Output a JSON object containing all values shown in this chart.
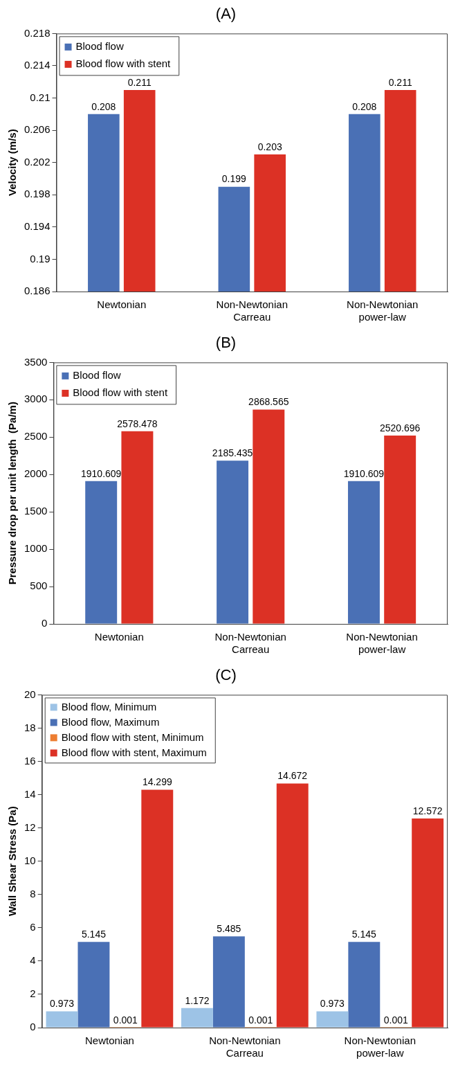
{
  "chart_data": [
    {
      "type": "bar",
      "title": "(A)",
      "ylabel": "Velocity (m/s)",
      "categories": [
        "Newtonian",
        "Non-Newtonian Carreau",
        "Non-Newtonian power-law"
      ],
      "series": [
        {
          "name": "Blood flow",
          "color": "#4a70b5",
          "values": [
            0.208,
            0.199,
            0.208
          ]
        },
        {
          "name": "Blood flow with stent",
          "color": "#dc3125",
          "values": [
            0.211,
            0.203,
            0.211
          ]
        }
      ],
      "ylim": [
        0.186,
        0.218
      ],
      "yticks": [
        0.186,
        0.19,
        0.194,
        0.198,
        0.202,
        0.206,
        0.21,
        0.214,
        0.218
      ],
      "grid": false,
      "legend": "top left",
      "data_labels": true
    },
    {
      "type": "bar",
      "title": "(B)",
      "ylabel": "Pressure drop per unit length  (Pa/m)",
      "categories": [
        "Newtonian",
        "Non-Newtonian Carreau",
        "Non-Newtonian power-law"
      ],
      "series": [
        {
          "name": "Blood flow",
          "color": "#4a70b5",
          "values": [
            1910.609,
            2185.435,
            1910.609
          ]
        },
        {
          "name": "Blood flow with stent",
          "color": "#dc3125",
          "values": [
            2578.478,
            2868.565,
            2520.696
          ]
        }
      ],
      "ylim": [
        0,
        3500
      ],
      "yticks": [
        0,
        500,
        1000,
        1500,
        2000,
        2500,
        3000,
        3500
      ],
      "grid": false,
      "legend": "top left",
      "data_labels": true
    },
    {
      "type": "bar",
      "title": "(C)",
      "ylabel": "Wall Shear Stress (Pa)",
      "categories": [
        "Newtonian",
        "Non-Newtonian Carreau",
        "Non-Newtonian power-law"
      ],
      "series": [
        {
          "name": "Blood flow, Minimum",
          "color": "#9dc3e6",
          "values": [
            0.973,
            1.172,
            0.973
          ]
        },
        {
          "name": "Blood flow, Maximum",
          "color": "#4a70b5",
          "values": [
            5.145,
            5.485,
            5.145
          ]
        },
        {
          "name": "Blood flow with stent, Minimum",
          "color": "#ed7d31",
          "values": [
            0.001,
            0.001,
            0.001
          ]
        },
        {
          "name": "Blood flow with stent, Maximum",
          "color": "#dc3125",
          "values": [
            14.299,
            14.672,
            12.572
          ]
        }
      ],
      "ylim": [
        0,
        20
      ],
      "yticks": [
        0,
        2,
        4,
        6,
        8,
        10,
        12,
        14,
        16,
        18,
        20
      ],
      "grid": false,
      "legend": "top left",
      "data_labels": true
    }
  ]
}
